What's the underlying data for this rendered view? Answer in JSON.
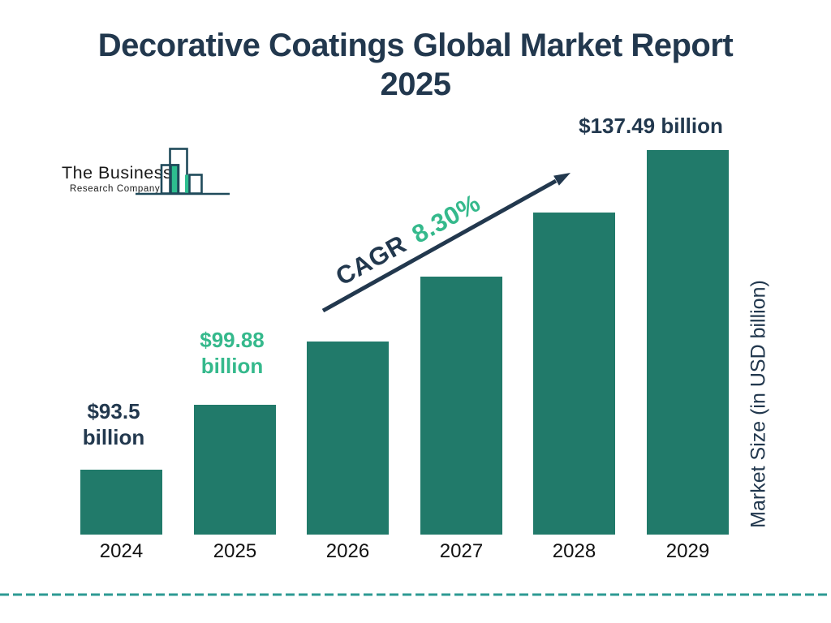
{
  "title": "Decorative Coatings Global Market Report 2025",
  "logo": {
    "line1": "The Business",
    "line2": "Research Company"
  },
  "colors": {
    "navy": "#22384e",
    "green": "#35b98c",
    "bar_fill": "#217a6a",
    "dashed_line": "#2d9a93",
    "logo_green": "#2ebe8f",
    "logo_outline": "#1f4a5a"
  },
  "chart_data": {
    "type": "bar",
    "title": "Decorative Coatings Global Market Report 2025",
    "categories": [
      "2024",
      "2025",
      "2026",
      "2027",
      "2028",
      "2029"
    ],
    "values": [
      93.5,
      99.88,
      null,
      null,
      null,
      137.49
    ],
    "unit": "USD billion",
    "bar_value_labels": [
      {
        "lines": [
          "$93.5",
          "billion"
        ],
        "color": "navy"
      },
      {
        "lines": [
          "$99.88",
          "billion"
        ],
        "color": "green"
      },
      null,
      null,
      null,
      {
        "lines": [
          "$137.49 billion"
        ],
        "color": "navy"
      }
    ],
    "cagr": {
      "prefix": "CAGR",
      "value": "8.30%"
    },
    "xlabel": "",
    "ylabel": "Market Size (in USD billion)",
    "legend": false,
    "grid": false,
    "axis_lines": false,
    "note": "bar heights grow linearly per year; only 2024, 2025 and 2029 bars carry value labels"
  }
}
